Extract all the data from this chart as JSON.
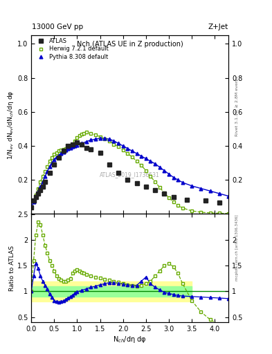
{
  "title_top": "13000 GeV pp",
  "title_right": "Z+Jet",
  "plot_title": "Nch (ATLAS UE in Z production)",
  "ylabel_main": "1/N$_{ev}$ dN$_{ev}$/dN$_{ch}$/dη dφ",
  "ylabel_ratio": "Ratio to ATLAS",
  "xlabel": "N$_{ch}$/dη dφ",
  "right_label_top": "Rivet 3.1.10, ≥ 2.8M events",
  "right_label_bot": "mcplots.cern.ch [arXiv:1306.3436]",
  "watermark": "ATLAS_2019_I1736531",
  "atlas_x": [
    0.0,
    0.05,
    0.1,
    0.15,
    0.2,
    0.25,
    0.3,
    0.4,
    0.5,
    0.6,
    0.7,
    0.8,
    0.9,
    1.0,
    1.1,
    1.2,
    1.3,
    1.5,
    1.7,
    1.9,
    2.1,
    2.3,
    2.5,
    2.7,
    2.9,
    3.1,
    3.4,
    3.8,
    4.1
  ],
  "atlas_y": [
    0.04,
    0.08,
    0.1,
    0.12,
    0.14,
    0.16,
    0.19,
    0.24,
    0.29,
    0.33,
    0.37,
    0.4,
    0.41,
    0.42,
    0.41,
    0.39,
    0.38,
    0.36,
    0.29,
    0.24,
    0.2,
    0.18,
    0.16,
    0.14,
    0.12,
    0.1,
    0.085,
    0.077,
    0.065
  ],
  "herwig_x": [
    0.0,
    0.05,
    0.1,
    0.15,
    0.2,
    0.25,
    0.3,
    0.35,
    0.4,
    0.45,
    0.5,
    0.55,
    0.6,
    0.65,
    0.7,
    0.75,
    0.8,
    0.85,
    0.9,
    0.95,
    1.0,
    1.05,
    1.1,
    1.15,
    1.2,
    1.3,
    1.4,
    1.5,
    1.6,
    1.7,
    1.8,
    1.9,
    2.0,
    2.1,
    2.2,
    2.3,
    2.4,
    2.5,
    2.6,
    2.7,
    2.8,
    2.9,
    3.0,
    3.1,
    3.2,
    3.3,
    3.5,
    3.7,
    3.9,
    4.1,
    4.3
  ],
  "herwig_y": [
    0.04,
    0.07,
    0.11,
    0.15,
    0.19,
    0.22,
    0.25,
    0.28,
    0.31,
    0.33,
    0.35,
    0.36,
    0.37,
    0.375,
    0.38,
    0.385,
    0.39,
    0.395,
    0.41,
    0.43,
    0.45,
    0.46,
    0.47,
    0.475,
    0.48,
    0.475,
    0.465,
    0.455,
    0.44,
    0.43,
    0.41,
    0.395,
    0.375,
    0.355,
    0.335,
    0.31,
    0.285,
    0.255,
    0.22,
    0.19,
    0.155,
    0.125,
    0.095,
    0.07,
    0.05,
    0.035,
    0.018,
    0.01,
    0.006,
    0.004,
    0.003
  ],
  "pythia_x": [
    0.0,
    0.05,
    0.1,
    0.15,
    0.2,
    0.25,
    0.3,
    0.35,
    0.4,
    0.45,
    0.5,
    0.55,
    0.6,
    0.65,
    0.7,
    0.75,
    0.8,
    0.85,
    0.9,
    0.95,
    1.0,
    1.1,
    1.2,
    1.3,
    1.4,
    1.5,
    1.6,
    1.7,
    1.8,
    1.9,
    2.0,
    2.1,
    2.2,
    2.3,
    2.4,
    2.5,
    2.6,
    2.7,
    2.8,
    2.9,
    3.0,
    3.1,
    3.2,
    3.3,
    3.5,
    3.7,
    3.9,
    4.1,
    4.3
  ],
  "pythia_y": [
    0.04,
    0.07,
    0.1,
    0.13,
    0.16,
    0.19,
    0.22,
    0.25,
    0.28,
    0.3,
    0.32,
    0.335,
    0.345,
    0.355,
    0.365,
    0.375,
    0.385,
    0.39,
    0.395,
    0.4,
    0.405,
    0.415,
    0.425,
    0.435,
    0.44,
    0.445,
    0.445,
    0.44,
    0.43,
    0.415,
    0.4,
    0.385,
    0.37,
    0.355,
    0.34,
    0.325,
    0.31,
    0.295,
    0.275,
    0.255,
    0.235,
    0.215,
    0.2,
    0.185,
    0.165,
    0.15,
    0.135,
    0.12,
    0.105
  ],
  "ylim_main": [
    0.0,
    1.05
  ],
  "ylim_ratio": [
    0.4,
    2.51
  ],
  "xlim": [
    0.0,
    4.3
  ],
  "yticks_main": [
    0.2,
    0.4,
    0.6,
    0.8,
    1.0
  ],
  "yticks_ratio": [
    0.5,
    1.0,
    1.5,
    2.0,
    2.5
  ],
  "atlas_color": "#222222",
  "herwig_color": "#66aa00",
  "pythia_color": "#0000cc",
  "band_yellow_lo": 0.8,
  "band_yellow_hi": 1.2,
  "band_green_lo": 0.9,
  "band_green_hi": 1.1,
  "band_yellow_color": "#ffff99",
  "band_green_color": "#99ff99",
  "band_xlo": 0.0,
  "band_xhi": 3.5,
  "ratio_herwig_x": [
    0.0,
    0.05,
    0.1,
    0.15,
    0.2,
    0.25,
    0.3,
    0.35,
    0.4,
    0.45,
    0.5,
    0.55,
    0.6,
    0.65,
    0.7,
    0.75,
    0.8,
    0.85,
    0.9,
    0.95,
    1.0,
    1.05,
    1.1,
    1.15,
    1.2,
    1.3,
    1.4,
    1.5,
    1.6,
    1.7,
    1.8,
    1.9,
    2.0,
    2.1,
    2.2,
    2.3,
    2.4,
    2.5,
    2.6,
    2.7,
    2.8,
    2.9,
    3.0,
    3.1,
    3.2,
    3.3,
    3.5,
    3.7,
    3.9,
    4.1,
    4.3
  ],
  "ratio_herwig_y": [
    1.0,
    1.6,
    2.1,
    2.35,
    2.3,
    2.1,
    1.9,
    1.75,
    1.6,
    1.5,
    1.4,
    1.3,
    1.25,
    1.22,
    1.2,
    1.2,
    1.22,
    1.25,
    1.35,
    1.4,
    1.43,
    1.4,
    1.37,
    1.35,
    1.33,
    1.3,
    1.28,
    1.26,
    1.24,
    1.22,
    1.2,
    1.18,
    1.15,
    1.13,
    1.11,
    1.1,
    1.12,
    1.15,
    1.2,
    1.3,
    1.4,
    1.5,
    1.55,
    1.48,
    1.35,
    1.15,
    0.82,
    0.6,
    0.45,
    0.35,
    0.25
  ],
  "ratio_pythia_x": [
    0.0,
    0.05,
    0.1,
    0.15,
    0.2,
    0.25,
    0.3,
    0.35,
    0.4,
    0.45,
    0.5,
    0.55,
    0.6,
    0.65,
    0.7,
    0.75,
    0.8,
    0.85,
    0.9,
    0.95,
    1.0,
    1.1,
    1.2,
    1.3,
    1.4,
    1.5,
    1.6,
    1.7,
    1.8,
    1.9,
    2.0,
    2.1,
    2.2,
    2.3,
    2.4,
    2.5,
    2.6,
    2.7,
    2.8,
    2.9,
    3.0,
    3.1,
    3.2,
    3.3,
    3.5,
    3.7,
    3.9,
    4.1,
    4.3
  ],
  "ratio_pythia_y": [
    1.0,
    1.3,
    1.55,
    1.45,
    1.3,
    1.2,
    1.12,
    1.05,
    0.95,
    0.88,
    0.82,
    0.8,
    0.79,
    0.8,
    0.82,
    0.84,
    0.87,
    0.9,
    0.93,
    0.96,
    0.99,
    1.02,
    1.05,
    1.08,
    1.1,
    1.13,
    1.15,
    1.17,
    1.17,
    1.16,
    1.14,
    1.13,
    1.12,
    1.12,
    1.2,
    1.28,
    1.15,
    1.08,
    1.03,
    0.98,
    0.96,
    0.94,
    0.92,
    0.91,
    0.9,
    0.89,
    0.88,
    0.87,
    0.86
  ]
}
